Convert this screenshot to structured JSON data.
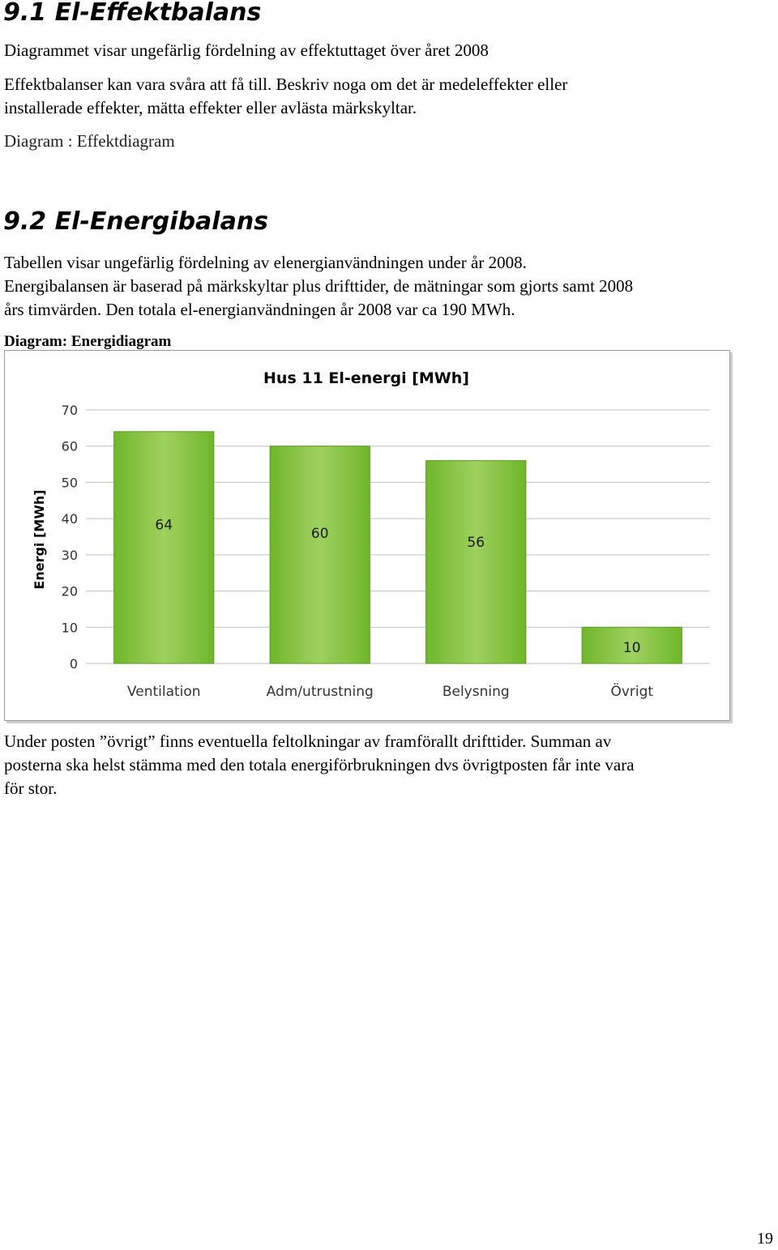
{
  "section1": {
    "heading": "9.1  El-Effektbalans",
    "line1": "Diagrammet visar ungefärlig fördelning av effektuttaget över året 2008",
    "para_line1": "Effektbalanser kan vara svåra att få till. Beskriv noga om det är medeleffekter eller",
    "para_line2": "installerade effekter, mätta effekter eller avlästa märkskyltar.",
    "diagram_ref": "Diagram : Effektdiagram"
  },
  "section2": {
    "heading": "9.2  El-Energibalans",
    "line1": "Tabellen visar ungefärlig fördelning av elenergianvändningen under år 2008.",
    "line2": "Energibalansen är baserad på märkskyltar plus drifttider, de mätningar som gjorts samt 2008",
    "line3": "års timvärden. Den totala el-energianvändningen år 2008 var ca 190 MWh.",
    "caption": "Diagram: Energidiagram"
  },
  "chart_data": {
    "type": "bar",
    "title": "Hus 11 El-energi  [MWh]",
    "ylabel": "Energi [MWh]",
    "xlabel": "",
    "categories": [
      "Ventilation",
      "Adm/utrustning",
      "Belysning",
      "Övrigt"
    ],
    "values": [
      64,
      60,
      56,
      10
    ],
    "data_labels": [
      "64",
      "60",
      "56",
      "10"
    ],
    "ylim": [
      0,
      70
    ],
    "yticks": [
      "0",
      "10",
      "20",
      "30",
      "40",
      "50",
      "60",
      "70"
    ],
    "grid": true,
    "legend": "none",
    "bar_color": "#71b62b",
    "bar_color_light": "#9ed15f",
    "grid_color": "#bfbfbf"
  },
  "footer": {
    "line1": "Under posten ”övrigt” finns eventuella feltolkningar av framförallt drifttider. Summan av",
    "line2": "posterna ska helst stämma med den totala energiförbrukningen dvs övrigtposten får inte vara",
    "line3": "för stor."
  },
  "page_number": "19"
}
